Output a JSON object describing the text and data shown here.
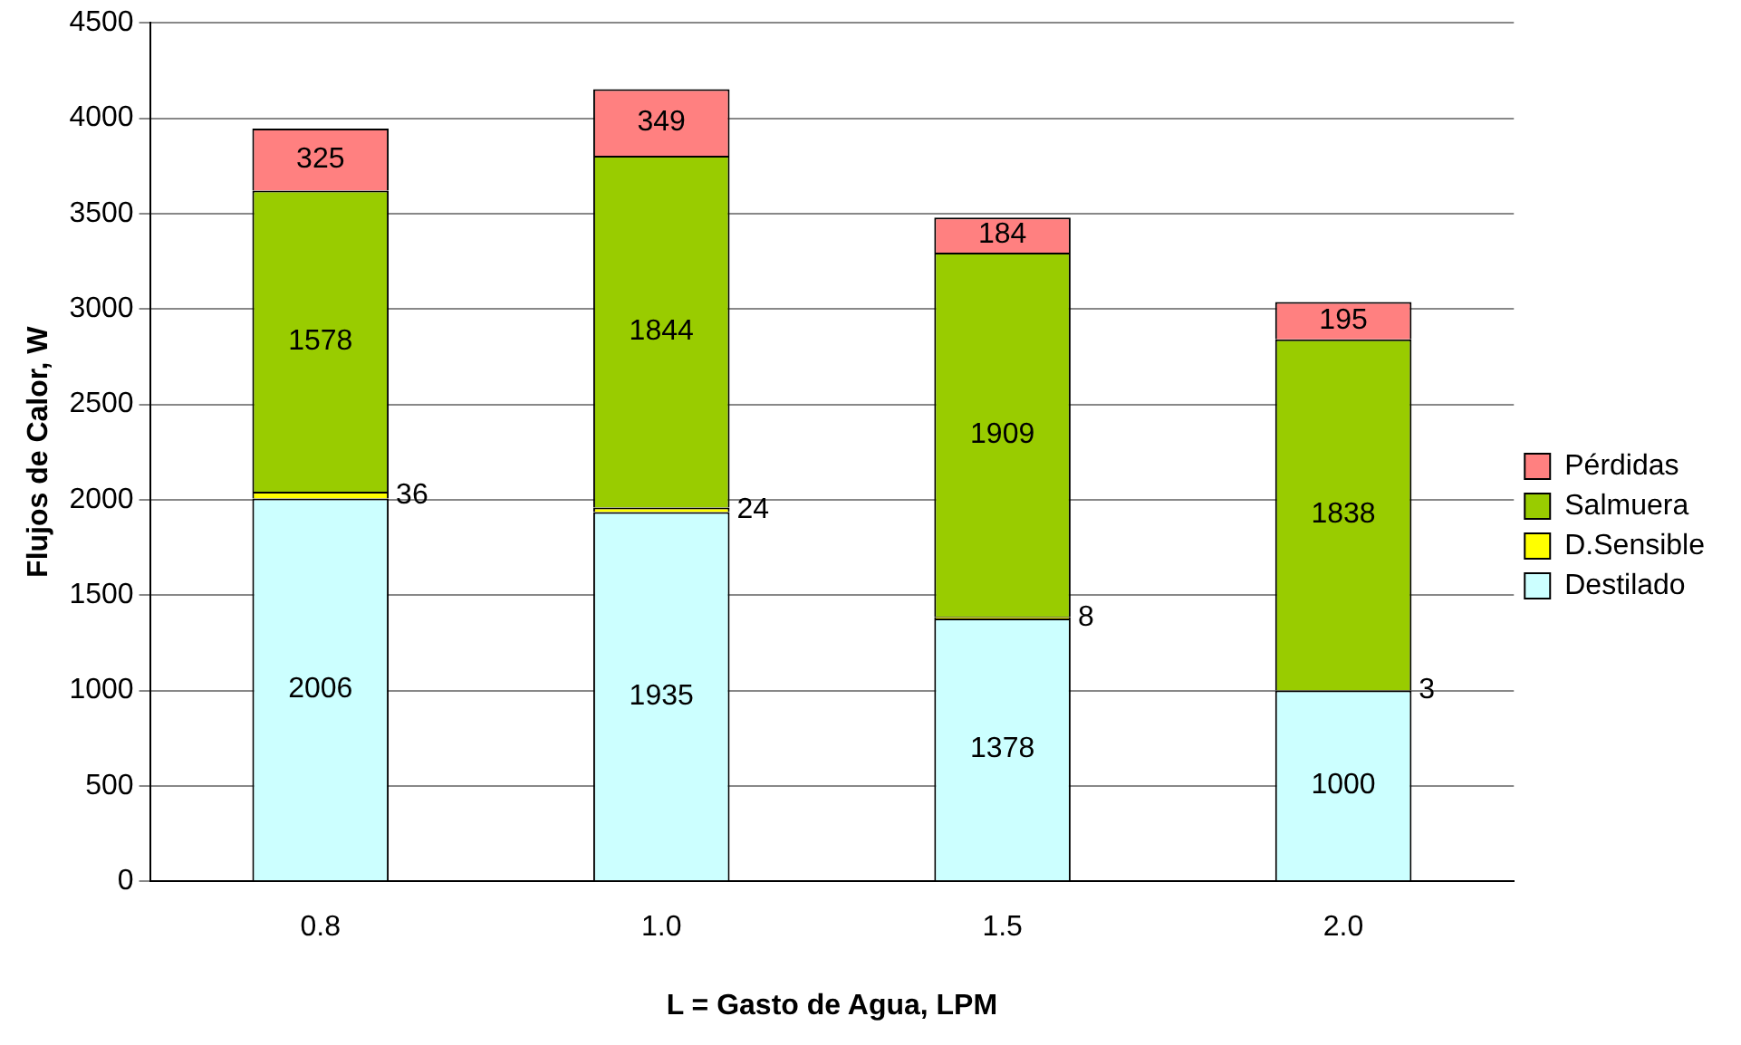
{
  "chart_data": {
    "type": "bar",
    "stacked": true,
    "xlabel": "L = Gasto de Agua, LPM",
    "ylabel": "Flujos de Calor, W",
    "categories": [
      "0.8",
      "1.0",
      "1.5",
      "2.0"
    ],
    "series": [
      {
        "name": "Destilado",
        "color": "#ccffff",
        "values": [
          2006,
          1935,
          1378,
          1000
        ]
      },
      {
        "name": "D.Sensible",
        "color": "#ffff00",
        "values": [
          36,
          24,
          8,
          3
        ]
      },
      {
        "name": "Salmuera",
        "color": "#99cc00",
        "values": [
          1578,
          1844,
          1909,
          1838
        ]
      },
      {
        "name": "Pérdidas",
        "color": "#ff8080",
        "values": [
          325,
          349,
          184,
          195
        ]
      }
    ],
    "ylim": [
      0,
      4500
    ],
    "yticks": [
      0,
      500,
      1000,
      1500,
      2000,
      2500,
      3000,
      3500,
      4000,
      4500
    ],
    "grid": "y",
    "legend": "right",
    "data_labels": true
  }
}
